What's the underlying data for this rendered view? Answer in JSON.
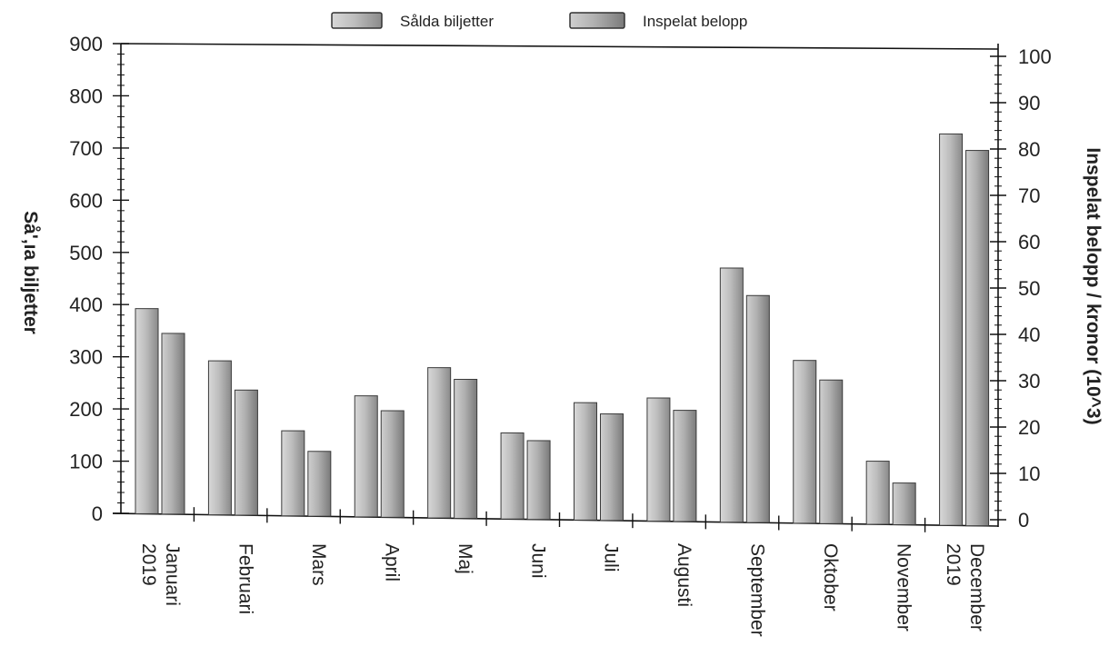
{
  "chart_data": {
    "type": "bar",
    "categories": [
      [
        "Januari",
        "2019"
      ],
      [
        "Februari"
      ],
      [
        "Mars"
      ],
      [
        "April"
      ],
      [
        "Maj"
      ],
      [
        "Juni"
      ],
      [
        "Juli"
      ],
      [
        "Augusti"
      ],
      [
        "September"
      ],
      [
        "Oktober"
      ],
      [
        "November"
      ],
      [
        "December",
        "2019"
      ]
    ],
    "series": [
      {
        "name": "Sålda biljetter",
        "axis": "left",
        "values": [
          393,
          295,
          163,
          232,
          288,
          165,
          225,
          236,
          487,
          312,
          121,
          750
        ],
        "color": "#9a9a9a"
      },
      {
        "name": "Inspelat belopp",
        "axis": "right",
        "values": [
          39,
          27,
          14,
          23,
          30,
          17,
          23,
          24,
          49,
          31,
          9,
          81
        ],
        "color": "#8c8c8c"
      }
    ],
    "ylabel_left": "Så'‚ıa biljetter",
    "ylabel_right": "Inspelat belopp / kronor (10^3)",
    "ylim_left": [
      0,
      900
    ],
    "ylim_right": [
      0,
      100
    ],
    "yticks_left": [
      0,
      100,
      200,
      300,
      400,
      500,
      600,
      700,
      800,
      900
    ],
    "yticks_right": [
      0,
      10,
      20,
      30,
      40,
      50,
      60,
      70,
      80,
      90,
      100
    ],
    "legend_position": "top",
    "grid": false
  }
}
